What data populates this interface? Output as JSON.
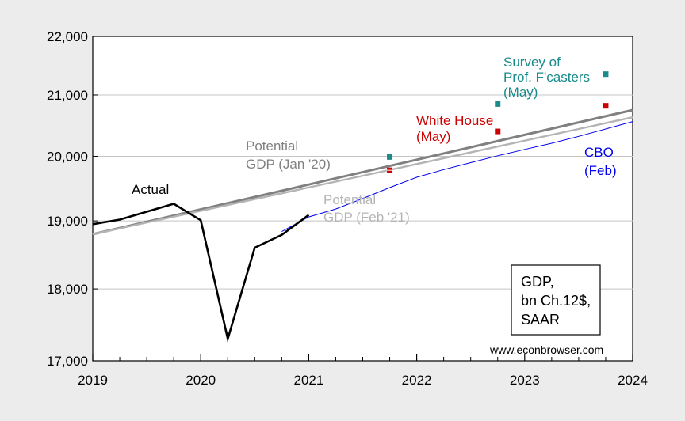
{
  "chart_data": {
    "type": "line",
    "ylim": [
      17000,
      22000
    ],
    "xlim": [
      2019.0,
      2024.0
    ],
    "y_scale": "log",
    "grid": true,
    "y_ticks": [
      {
        "value": 17000,
        "label": "17,000"
      },
      {
        "value": 18000,
        "label": "18,000"
      },
      {
        "value": 19000,
        "label": "19,000"
      },
      {
        "value": 20000,
        "label": "20,000"
      },
      {
        "value": 21000,
        "label": "21,000"
      },
      {
        "value": 22000,
        "label": "22,000"
      }
    ],
    "x_ticks": [
      {
        "value": 2019,
        "label": "2019"
      },
      {
        "value": 2020,
        "label": "2020"
      },
      {
        "value": 2021,
        "label": "2021"
      },
      {
        "value": 2022,
        "label": "2022"
      },
      {
        "value": 2023,
        "label": "2023"
      },
      {
        "value": 2024,
        "label": "2024"
      }
    ],
    "series": [
      {
        "name": "Potential GDP (Jan '20)",
        "color": "#808080",
        "x": [
          2019.0,
          2024.0
        ],
        "y": [
          18800,
          20750
        ]
      },
      {
        "name": "Potential GDP (Feb '21)",
        "color": "#b4b4b4",
        "x": [
          2019.0,
          2024.0
        ],
        "y": [
          18800,
          20630
        ]
      },
      {
        "name": "CBO (Feb)",
        "color": "#0000ee",
        "x": [
          2020.75,
          2021.0,
          2021.25,
          2021.5,
          2021.75,
          2022.0,
          2022.25,
          2022.5,
          2022.75,
          2023.0,
          2023.25,
          2023.5,
          2023.75,
          2024.0
        ],
        "y": [
          18840,
          19060,
          19180,
          19340,
          19510,
          19670,
          19790,
          19900,
          20010,
          20110,
          20210,
          20320,
          20440,
          20560
        ]
      },
      {
        "name": "Actual",
        "color": "#000000",
        "x": [
          2019.0,
          2019.25,
          2019.5,
          2019.75,
          2020.0,
          2020.25,
          2020.5,
          2020.75,
          2021.0
        ],
        "y": [
          18950,
          19020,
          19140,
          19260,
          19010,
          17300,
          18600,
          18790,
          19090
        ]
      }
    ],
    "points": [
      {
        "group": "Survey of Prof. F'casters (May)",
        "color": "#1a8a8a",
        "x": 2021.75,
        "y": 19990
      },
      {
        "group": "Survey of Prof. F'casters (May)",
        "color": "#1a8a8a",
        "x": 2022.75,
        "y": 20850
      },
      {
        "group": "Survey of Prof. F'casters (May)",
        "color": "#1a8a8a",
        "x": 2023.75,
        "y": 21350
      },
      {
        "group": "White House (May)",
        "color": "#cc0000",
        "x": 2021.75,
        "y": 19780
      },
      {
        "group": "White House (May)",
        "color": "#cc0000",
        "x": 2022.75,
        "y": 20400
      },
      {
        "group": "White House (May)",
        "color": "#cc0000",
        "x": 2023.75,
        "y": 20820
      }
    ],
    "annotations": [
      {
        "id": "actual",
        "lines": [
          "Actual"
        ],
        "color": "#000000"
      },
      {
        "id": "pot20",
        "lines": [
          "Potential",
          "GDP (Jan '20)"
        ],
        "color": "#808080"
      },
      {
        "id": "pot21",
        "lines": [
          "Potential",
          "GDP (Feb '21)"
        ],
        "color": "#b4b4b4"
      },
      {
        "id": "wh",
        "lines": [
          "White House",
          "(May)"
        ],
        "color": "#cc0000"
      },
      {
        "id": "spf",
        "lines": [
          "Survey of",
          "Prof. F'casters",
          "(May)"
        ],
        "color": "#1a8a8a"
      },
      {
        "id": "cbo",
        "lines": [
          "CBO",
          "(Feb)"
        ],
        "color": "#0000ee"
      }
    ],
    "note_box": [
      "GDP,",
      "bn Ch.12$,",
      "SAAR"
    ],
    "credit": "www.econbrowser.com"
  }
}
